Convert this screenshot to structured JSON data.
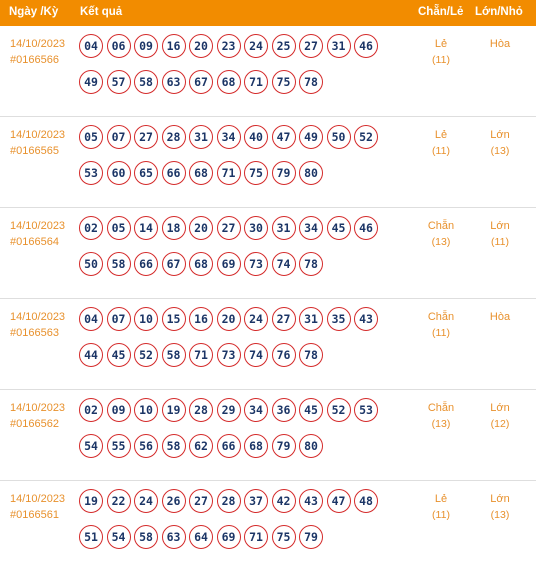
{
  "header": {
    "date": "Ngày /Kỳ",
    "result": "Kết quả",
    "chanle": "Chẵn/Lẻ",
    "lonnho": "Lớn/Nhỏ"
  },
  "rows": [
    {
      "date": "14/10/2023",
      "id": "#0166566",
      "numbers": [
        "04",
        "06",
        "09",
        "16",
        "20",
        "23",
        "24",
        "25",
        "27",
        "31",
        "46",
        "49",
        "57",
        "58",
        "63",
        "67",
        "68",
        "71",
        "75",
        "78"
      ],
      "chanle": "Lẻ",
      "chanle_count": "(11)",
      "lonnho": "Hòa",
      "lonnho_count": ""
    },
    {
      "date": "14/10/2023",
      "id": "#0166565",
      "numbers": [
        "05",
        "07",
        "27",
        "28",
        "31",
        "34",
        "40",
        "47",
        "49",
        "50",
        "52",
        "53",
        "60",
        "65",
        "66",
        "68",
        "71",
        "75",
        "79",
        "80"
      ],
      "chanle": "Lẻ",
      "chanle_count": "(11)",
      "lonnho": "Lớn",
      "lonnho_count": "(13)"
    },
    {
      "date": "14/10/2023",
      "id": "#0166564",
      "numbers": [
        "02",
        "05",
        "14",
        "18",
        "20",
        "27",
        "30",
        "31",
        "34",
        "45",
        "46",
        "50",
        "58",
        "66",
        "67",
        "68",
        "69",
        "73",
        "74",
        "78"
      ],
      "chanle": "Chẵn",
      "chanle_count": "(13)",
      "lonnho": "Lớn",
      "lonnho_count": "(11)"
    },
    {
      "date": "14/10/2023",
      "id": "#0166563",
      "numbers": [
        "04",
        "07",
        "10",
        "15",
        "16",
        "20",
        "24",
        "27",
        "31",
        "35",
        "43",
        "44",
        "45",
        "52",
        "58",
        "71",
        "73",
        "74",
        "76",
        "78"
      ],
      "chanle": "Chẵn",
      "chanle_count": "(11)",
      "lonnho": "Hòa",
      "lonnho_count": ""
    },
    {
      "date": "14/10/2023",
      "id": "#0166562",
      "numbers": [
        "02",
        "09",
        "10",
        "19",
        "28",
        "29",
        "34",
        "36",
        "45",
        "52",
        "53",
        "54",
        "55",
        "56",
        "58",
        "62",
        "66",
        "68",
        "79",
        "80"
      ],
      "chanle": "Chẵn",
      "chanle_count": "(13)",
      "lonnho": "Lớn",
      "lonnho_count": "(12)"
    },
    {
      "date": "14/10/2023",
      "id": "#0166561",
      "numbers": [
        "19",
        "22",
        "24",
        "26",
        "27",
        "28",
        "37",
        "42",
        "43",
        "47",
        "48",
        "51",
        "54",
        "58",
        "63",
        "64",
        "69",
        "71",
        "75",
        "79"
      ],
      "chanle": "Lẻ",
      "chanle_count": "(11)",
      "lonnho": "Lớn",
      "lonnho_count": "(13)"
    }
  ]
}
